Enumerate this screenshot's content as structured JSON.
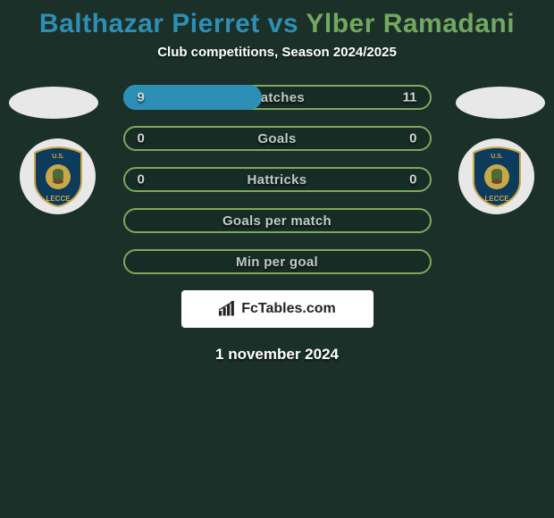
{
  "title": {
    "player1": "Balthazar Pierret",
    "vs": " vs ",
    "player2": "Ylber Ramadani",
    "color1": "#2d8fb5",
    "color2": "#73a860"
  },
  "subtitle": "Club competitions, Season 2024/2025",
  "row_border_color": "#7fa85c",
  "bar_fill_color": "#2d8fb5",
  "rows": [
    {
      "label": "Matches",
      "left": "9",
      "right": "11",
      "fill_pct": 45
    },
    {
      "label": "Goals",
      "left": "0",
      "right": "0",
      "fill_pct": 0
    },
    {
      "label": "Hattricks",
      "left": "0",
      "right": "0",
      "fill_pct": 0
    },
    {
      "label": "Goals per match",
      "left": "",
      "right": "",
      "fill_pct": 0
    },
    {
      "label": "Min per goal",
      "left": "",
      "right": "",
      "fill_pct": 0
    }
  ],
  "footer": "FcTables.com",
  "date": "1 november 2024",
  "crest": {
    "shield_color": "#0d3b5c",
    "border_color": "#c9a84a",
    "text": "U.S.",
    "text2": "LECCE"
  }
}
